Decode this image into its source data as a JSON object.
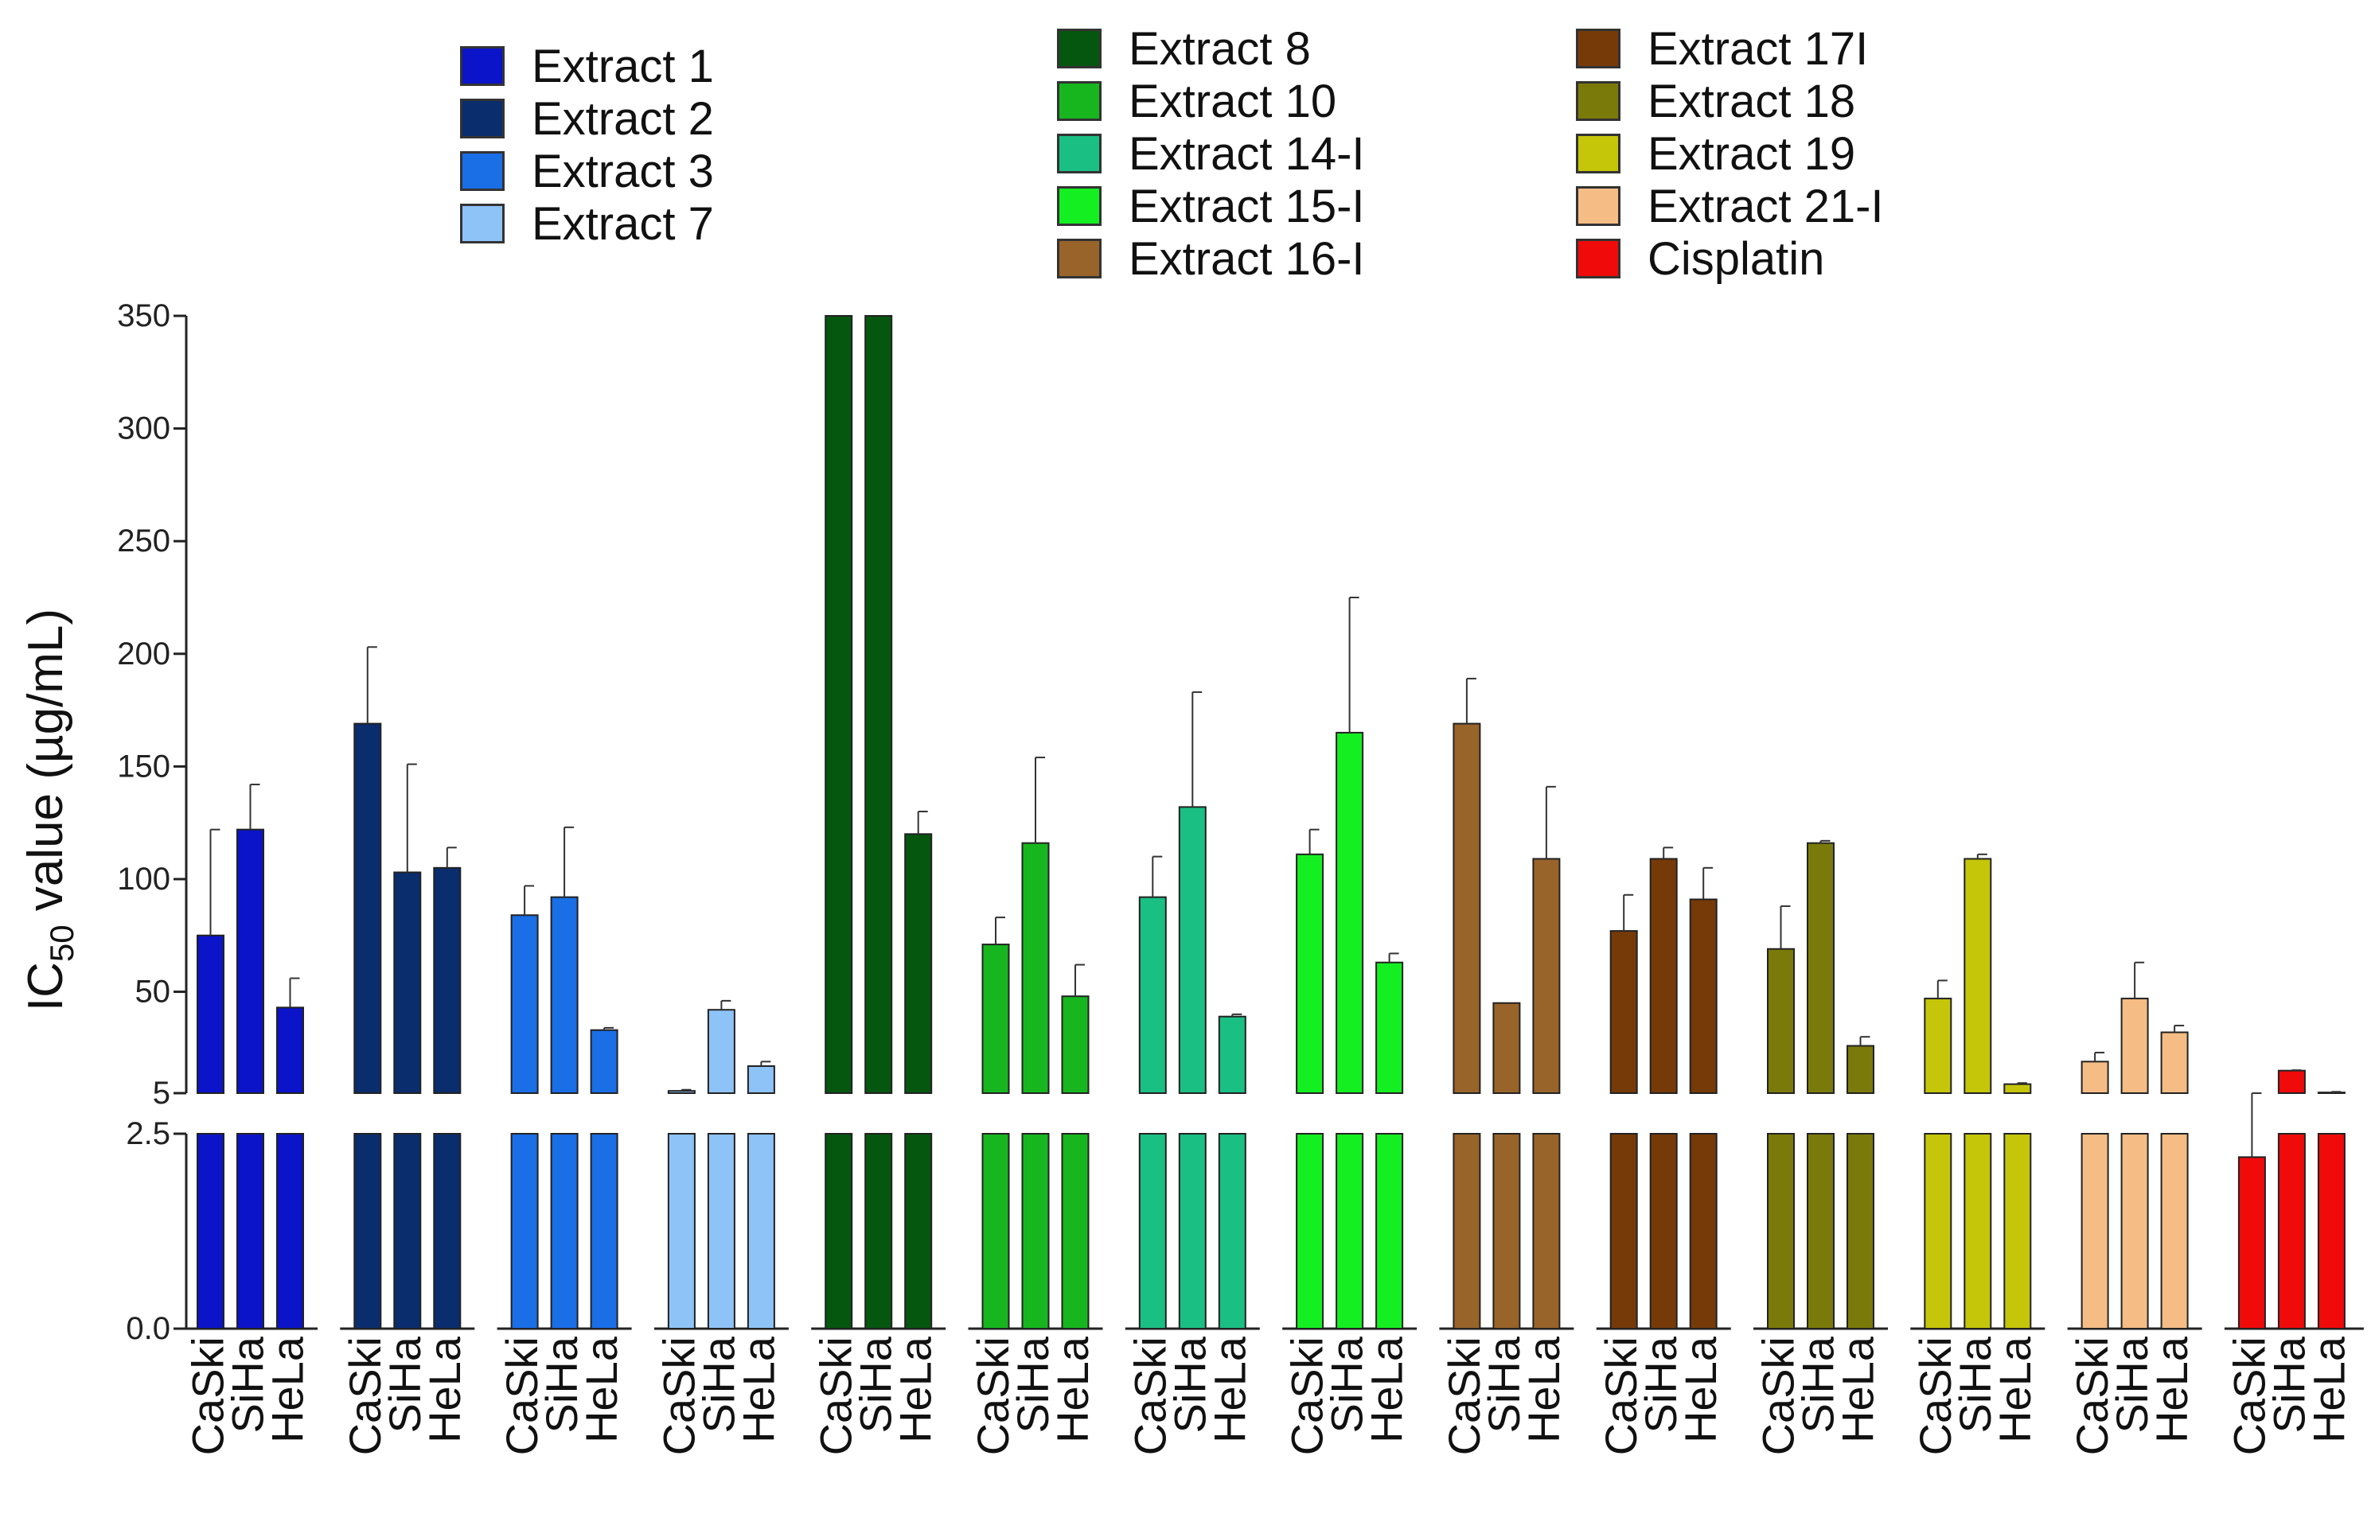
{
  "chart_data": {
    "type": "bar",
    "title": "",
    "ylabel": "IC50 value (µg/mL)",
    "ylabel_main": "IC",
    "ylabel_sub": "50",
    "ylabel_rest": " value (µg/mL)",
    "y_break": true,
    "ylim_lower": [
      0,
      2.5
    ],
    "ylim_upper": [
      5,
      350
    ],
    "yticks_lower": [
      "0.0",
      "2.5"
    ],
    "yticks_upper": [
      "5",
      "50",
      "100",
      "150",
      "200",
      "250",
      "300",
      "350"
    ],
    "cell_lines": [
      "CaSki",
      "SiHa",
      "HeLa"
    ],
    "series": [
      {
        "name": "Extract 1",
        "color": "#0b14c8",
        "values": [
          75,
          122,
          43
        ],
        "errors": [
          47,
          20,
          13
        ]
      },
      {
        "name": "Extract 2",
        "color": "#0a2d6e",
        "values": [
          169,
          103,
          105
        ],
        "errors": [
          34,
          48,
          9
        ]
      },
      {
        "name": "Extract 3",
        "color": "#1a6ee6",
        "values": [
          84,
          92,
          33
        ],
        "errors": [
          13,
          31,
          1
        ]
      },
      {
        "name": "Extract 7",
        "color": "#8ec3f7",
        "values": [
          6,
          42,
          17
        ],
        "errors": [
          0.5,
          4,
          2
        ]
      },
      {
        "name": "Extract 8",
        "color": "#05560f",
        "values": [
          350,
          350,
          120
        ],
        "errors": [
          0,
          0,
          10
        ]
      },
      {
        "name": "Extract 10",
        "color": "#17b61f",
        "values": [
          71,
          116,
          48
        ],
        "errors": [
          12,
          38,
          14
        ]
      },
      {
        "name": "Extract 14-I",
        "color": "#1abf84",
        "values": [
          92,
          132,
          39
        ],
        "errors": [
          18,
          51,
          1
        ]
      },
      {
        "name": "Extract 15-I",
        "color": "#14ef21",
        "values": [
          111,
          165,
          63
        ],
        "errors": [
          11,
          60,
          4
        ]
      },
      {
        "name": "Extract 16-I",
        "color": "#99642a",
        "values": [
          169,
          45,
          109
        ],
        "errors": [
          20,
          0,
          32
        ]
      },
      {
        "name": "Extract 17I",
        "color": "#763a08",
        "values": [
          77,
          109,
          91
        ],
        "errors": [
          16,
          5,
          14
        ]
      },
      {
        "name": "Extract 18",
        "color": "#7a7a0a",
        "values": [
          69,
          116,
          26
        ],
        "errors": [
          19,
          1,
          4
        ]
      },
      {
        "name": "Extract 19",
        "color": "#c5c50a",
        "values": [
          47,
          109,
          9
        ],
        "errors": [
          8,
          2,
          0.5
        ]
      },
      {
        "name": "Extract 21-I",
        "color": "#f5bd85",
        "values": [
          19,
          47,
          32
        ],
        "errors": [
          4,
          16,
          3
        ]
      },
      {
        "name": "Cisplatin",
        "color": "#f00a0a",
        "values": [
          2.2,
          15,
          5.3
        ],
        "errors": [
          0.35,
          0.2,
          0.3
        ]
      }
    ]
  }
}
